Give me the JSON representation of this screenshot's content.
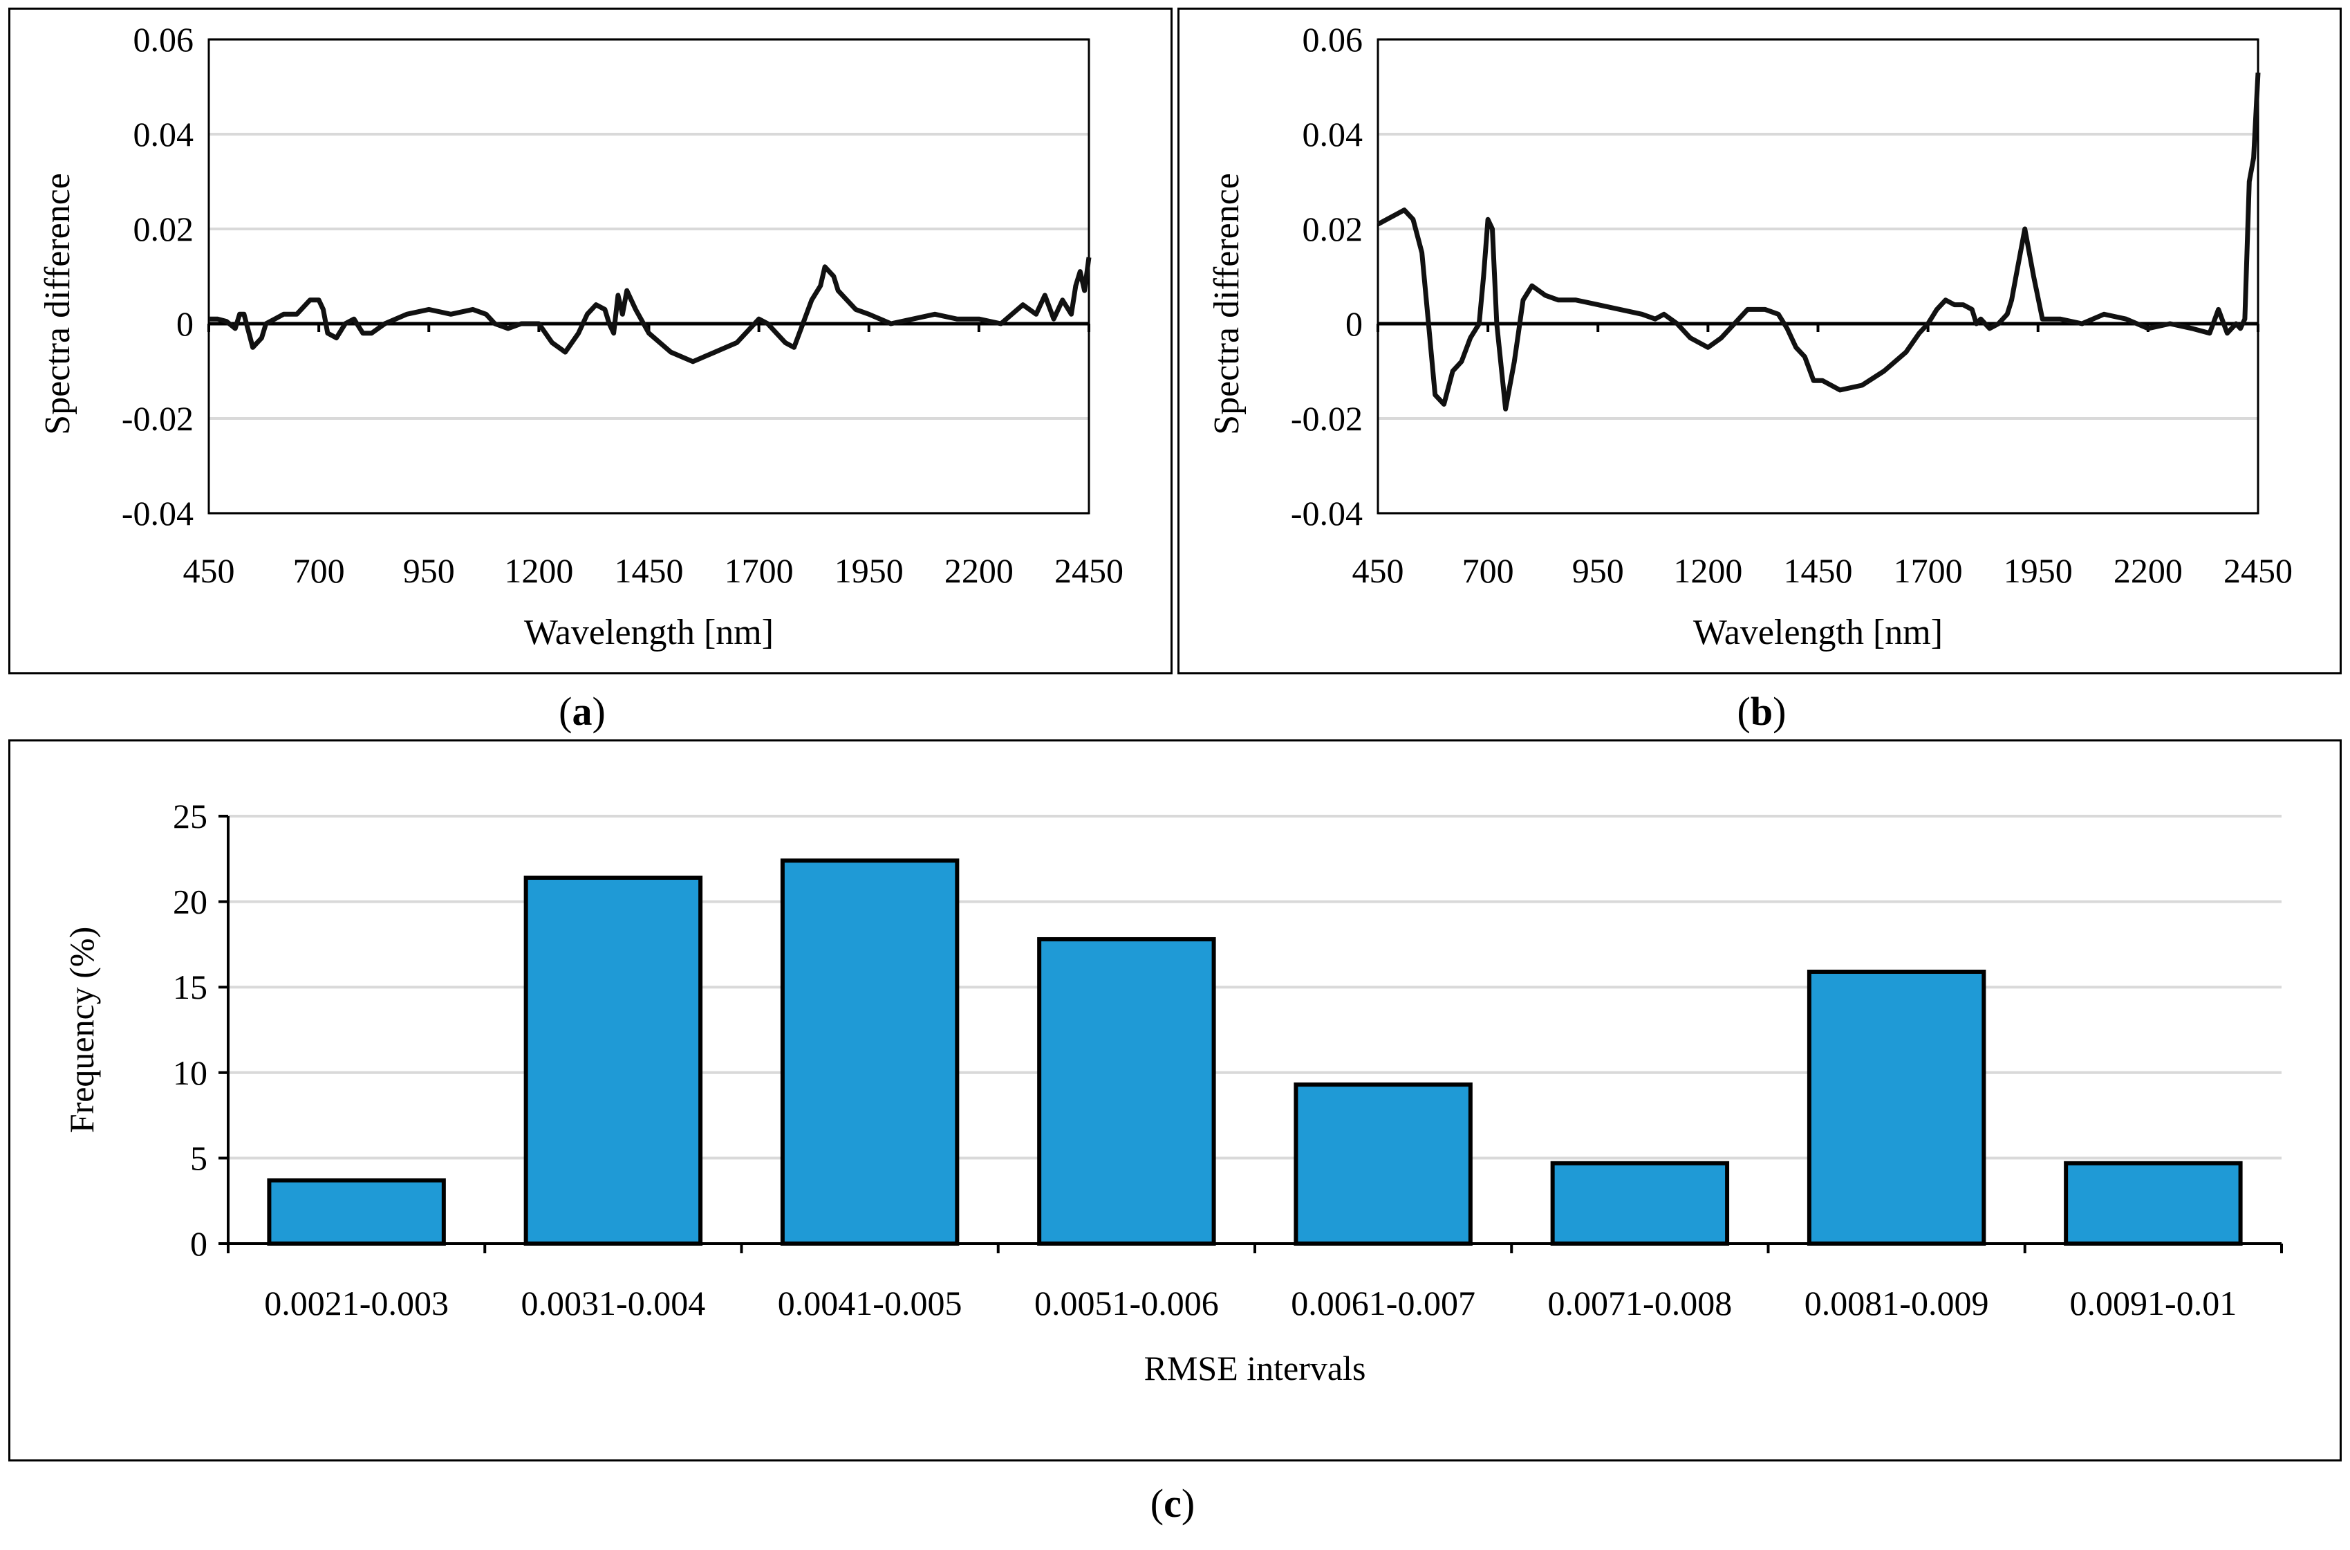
{
  "captions": {
    "a": "a",
    "b": "b",
    "c": "c"
  },
  "chart_data": [
    {
      "id": "a",
      "type": "line",
      "xlabel": "Wavelength [nm]",
      "ylabel": "Spectra difference",
      "xlim": [
        450,
        2450
      ],
      "ylim": [
        -0.04,
        0.06
      ],
      "xticks": [
        "450",
        "700",
        "950",
        "1200",
        "1450",
        "1700",
        "1950",
        "2200",
        "2450"
      ],
      "yticks": [
        "-0.04",
        "-0.02",
        "0",
        "0.02",
        "0.04",
        "0.06"
      ],
      "grid": "horizontal",
      "series": [
        {
          "x": [
            450,
            470,
            490,
            510,
            520,
            530,
            550,
            570,
            580,
            600,
            620,
            650,
            680,
            700,
            710,
            720,
            740,
            760,
            780,
            800,
            820,
            850,
            900,
            950,
            1000,
            1050,
            1080,
            1100,
            1130,
            1160,
            1200,
            1230,
            1260,
            1290,
            1310,
            1330,
            1350,
            1360,
            1370,
            1380,
            1390,
            1400,
            1420,
            1450,
            1500,
            1550,
            1600,
            1650,
            1690,
            1700,
            1720,
            1740,
            1760,
            1780,
            1800,
            1820,
            1840,
            1850,
            1870,
            1880,
            1900,
            1920,
            1950,
            2000,
            2050,
            2100,
            2150,
            2200,
            2250,
            2300,
            2330,
            2350,
            2370,
            2390,
            2410,
            2420,
            2430,
            2440,
            2450
          ],
          "y": [
            0.001,
            0.001,
            0.0005,
            -0.001,
            0.002,
            0.002,
            -0.005,
            -0.003,
            0,
            0.001,
            0.002,
            0.002,
            0.005,
            0.005,
            0.003,
            -0.002,
            -0.003,
            0,
            0.001,
            -0.002,
            -0.002,
            0,
            0.002,
            0.003,
            0.002,
            0.003,
            0.002,
            0,
            -0.001,
            0,
            0,
            -0.004,
            -0.006,
            -0.002,
            0.002,
            0.004,
            0.003,
            0,
            -0.002,
            0.006,
            0.002,
            0.007,
            0.003,
            -0.002,
            -0.006,
            -0.008,
            -0.006,
            -0.004,
            0,
            0.001,
            0,
            -0.002,
            -0.004,
            -0.005,
            0,
            0.005,
            0.008,
            0.012,
            0.01,
            0.007,
            0.005,
            0.003,
            0.002,
            0,
            0.001,
            0.002,
            0.001,
            0.001,
            0,
            0.004,
            0.002,
            0.006,
            0.001,
            0.005,
            0.002,
            0.008,
            0.011,
            0.007,
            0.014
          ]
        }
      ]
    },
    {
      "id": "b",
      "type": "line",
      "xlabel": "Wavelength [nm]",
      "ylabel": "Spectra difference",
      "xlim": [
        450,
        2450
      ],
      "ylim": [
        -0.04,
        0.06
      ],
      "xticks": [
        "450",
        "700",
        "950",
        "1200",
        "1450",
        "1700",
        "1950",
        "2200",
        "2450"
      ],
      "yticks": [
        "-0.04",
        "-0.02",
        "0",
        "0.02",
        "0.04",
        "0.06"
      ],
      "grid": "horizontal",
      "series": [
        {
          "x": [
            450,
            470,
            490,
            510,
            530,
            550,
            565,
            580,
            600,
            620,
            640,
            660,
            680,
            690,
            700,
            710,
            720,
            740,
            760,
            780,
            800,
            830,
            860,
            900,
            950,
            1000,
            1050,
            1080,
            1100,
            1130,
            1160,
            1200,
            1230,
            1260,
            1290,
            1300,
            1330,
            1360,
            1380,
            1400,
            1420,
            1440,
            1460,
            1500,
            1550,
            1600,
            1650,
            1680,
            1700,
            1720,
            1740,
            1760,
            1780,
            1800,
            1810,
            1820,
            1840,
            1860,
            1880,
            1890,
            1900,
            1920,
            1940,
            1960,
            2000,
            2050,
            2100,
            2150,
            2200,
            2250,
            2300,
            2340,
            2360,
            2380,
            2400,
            2410,
            2420,
            2430,
            2440,
            2450
          ],
          "y": [
            0.021,
            0.022,
            0.023,
            0.024,
            0.022,
            0.015,
            0,
            -0.015,
            -0.017,
            -0.01,
            -0.008,
            -0.003,
            0,
            0.01,
            0.022,
            0.02,
            0,
            -0.018,
            -0.008,
            0.005,
            0.008,
            0.006,
            0.005,
            0.005,
            0.004,
            0.003,
            0.002,
            0.001,
            0.002,
            0,
            -0.003,
            -0.005,
            -0.003,
            0,
            0.003,
            0.003,
            0.003,
            0.002,
            -0.001,
            -0.005,
            -0.007,
            -0.012,
            -0.012,
            -0.014,
            -0.013,
            -0.01,
            -0.006,
            -0.002,
            0,
            0.003,
            0.005,
            0.004,
            0.004,
            0.003,
            0,
            0.001,
            -0.001,
            0,
            0.002,
            0.005,
            0.01,
            0.02,
            0.01,
            0.001,
            0.001,
            0,
            0.002,
            0.001,
            -0.001,
            0,
            -0.001,
            -0.002,
            0.003,
            -0.002,
            0,
            -0.001,
            0.001,
            0.03,
            0.035,
            0.053
          ]
        }
      ]
    },
    {
      "id": "c",
      "type": "bar",
      "xlabel": "RMSE intervals",
      "ylabel": "Frequency (%)",
      "ylim": [
        0,
        25
      ],
      "yticks": [
        "0",
        "5",
        "10",
        "15",
        "20",
        "25"
      ],
      "grid": "horizontal",
      "categories": [
        "0.0021-0.003",
        "0.0031-0.004",
        "0.0041-0.005",
        "0.0051-0.006",
        "0.0061-0.007",
        "0.0071-0.008",
        "0.0081-0.009",
        "0.0091-0.01"
      ],
      "values": [
        3.7,
        21.4,
        22.4,
        17.8,
        9.3,
        4.7,
        15.9,
        4.7
      ],
      "bar_color": "#1f9ad6"
    }
  ]
}
